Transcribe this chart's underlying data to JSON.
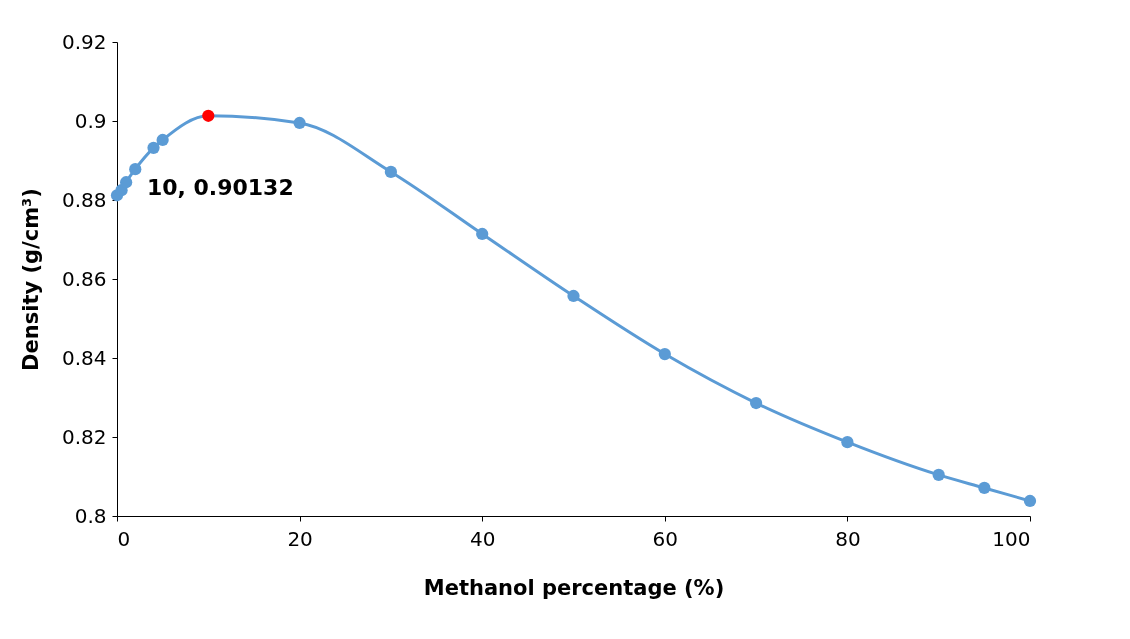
{
  "chart_data": {
    "type": "line",
    "xlabel": "Methanol percentage (%)",
    "ylabel": "Density (g/cm³)",
    "x": [
      0,
      0.5,
      1,
      2,
      4,
      5,
      10,
      20,
      30,
      40,
      50,
      60,
      70,
      80,
      90,
      95,
      100
    ],
    "series": [
      {
        "color": "#5b9bd5",
        "colors": [
          "#5b9bd5",
          "#5b9bd5",
          "#5b9bd5",
          "#5b9bd5",
          "#5b9bd5",
          "#5b9bd5",
          "#ff0000",
          "#5b9bd5",
          "#5b9bd5",
          "#5b9bd5",
          "#5b9bd5",
          "#5b9bd5",
          "#5b9bd5",
          "#5b9bd5",
          "#5b9bd5",
          "#5b9bd5",
          "#5b9bd5"
        ],
        "values": [
          0.8812,
          0.8825,
          0.8845,
          0.8878,
          0.8932,
          0.8952,
          0.90132,
          0.8995,
          0.8871,
          0.8714,
          0.8557,
          0.841,
          0.8286,
          0.8187,
          0.8104,
          0.8071,
          0.8038
        ]
      }
    ],
    "annotations": [
      {
        "text": "10, 0.90132",
        "x": 10,
        "y": 0.90132
      }
    ],
    "xlim": [
      0,
      100
    ],
    "xticks": [
      0,
      20,
      40,
      60,
      80,
      100
    ],
    "ylim": [
      0.8,
      0.92
    ],
    "yticks": [
      0.8,
      0.82,
      0.84,
      0.86,
      0.88,
      0.9,
      0.92
    ],
    "grid": false,
    "marker": "circle"
  }
}
